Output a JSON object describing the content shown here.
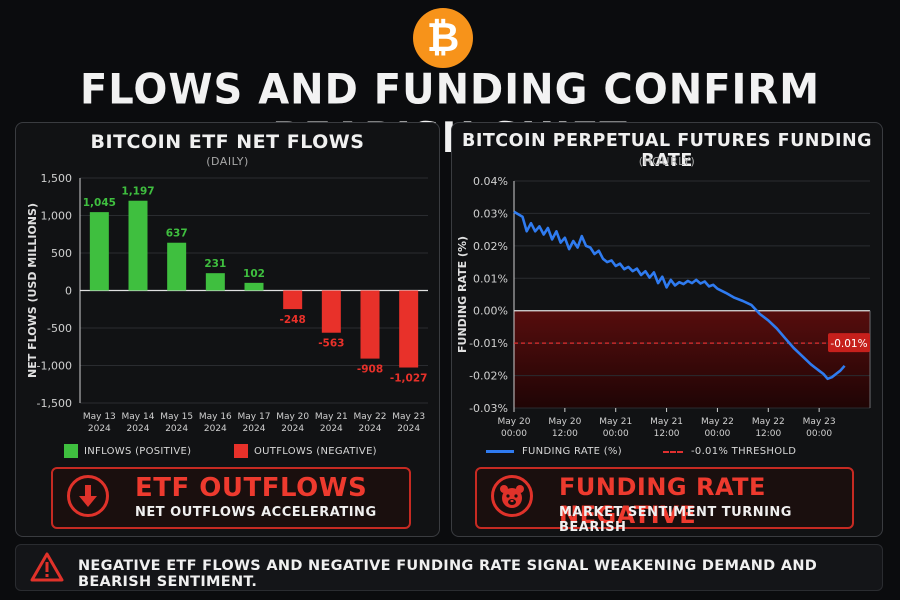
{
  "logo": {
    "symbol": "₿",
    "icon": "bitcoin-icon",
    "color": "#f7931a"
  },
  "title": "FLOWS AND FUNDING CONFIRM BEARISH SHIFT",
  "colors": {
    "positive": "#3fbf3f",
    "negative": "#e8312a",
    "line": "#2f7bf0",
    "threshold": "#e03030",
    "negative_zone": "#5a0d0d"
  },
  "chart_data": [
    {
      "type": "bar",
      "title": "BITCOIN ETF NET FLOWS",
      "subtitle": "(DAILY)",
      "ylabel": "NET FLOWS (USD MILLIONS)",
      "xlabel": "",
      "ylim": [
        -1500,
        1500
      ],
      "yticks": [
        -1500,
        -1000,
        -500,
        0,
        500,
        1000,
        1500
      ],
      "ytick_labels": [
        "-1,500",
        "-1,000",
        "-500",
        "0",
        "500",
        "1,000",
        "1,500"
      ],
      "categories": [
        [
          "May 13",
          "2024"
        ],
        [
          "May 14",
          "2024"
        ],
        [
          "May 15",
          "2024"
        ],
        [
          "May 16",
          "2024"
        ],
        [
          "May 17",
          "2024"
        ],
        [
          "May 20",
          "2024"
        ],
        [
          "May 21",
          "2024"
        ],
        [
          "May 22",
          "2024"
        ],
        [
          "May 23",
          "2024"
        ]
      ],
      "values": [
        1045,
        1197,
        637,
        231,
        102,
        -248,
        -563,
        -908,
        -1027
      ],
      "value_labels": [
        "1,045",
        "1,197",
        "637",
        "231",
        "102",
        "-248",
        "-563",
        "-908",
        "-1,027"
      ],
      "legend": [
        {
          "label": "INFLOWS (POSITIVE)",
          "color": "#3fbf3f"
        },
        {
          "label": "OUTFLOWS (NEGATIVE)",
          "color": "#e8312a"
        }
      ],
      "grid": true
    },
    {
      "type": "line",
      "title": "BITCOIN PERPETUAL FUTURES FUNDING RATE",
      "subtitle": "(HOURLY)",
      "ylabel": "FUNDING RATE (%)",
      "xlabel": "",
      "ylim": [
        -0.03,
        0.04
      ],
      "yticks": [
        -0.03,
        -0.02,
        -0.01,
        0,
        0.01,
        0.02,
        0.03,
        0.04
      ],
      "ytick_labels": [
        "-0.03%",
        "-0.02%",
        "-0.01%",
        "0.00%",
        "0.01%",
        "0.02%",
        "0.03%",
        "0.04%"
      ],
      "xlim": [
        0,
        84
      ],
      "xticks": [
        0,
        12,
        24,
        36,
        48,
        60,
        72
      ],
      "xtick_labels": [
        [
          "May 20",
          "00:00"
        ],
        [
          "May 20",
          "12:00"
        ],
        [
          "May 21",
          "00:00"
        ],
        [
          "May 21",
          "12:00"
        ],
        [
          "May 22",
          "00:00"
        ],
        [
          "May 22",
          "12:00"
        ],
        [
          "May 23",
          "00:00"
        ]
      ],
      "series": [
        {
          "name": "FUNDING RATE (%)",
          "x": [
            0,
            2,
            3,
            4,
            5,
            6,
            7,
            8,
            9,
            10,
            11,
            12,
            13,
            14,
            15,
            16,
            17,
            18,
            19,
            20,
            21,
            22,
            23,
            24,
            25,
            26,
            27,
            28,
            29,
            30,
            31,
            32,
            33,
            34,
            35,
            36,
            37,
            38,
            39,
            40,
            41,
            42,
            43,
            44,
            45,
            46,
            47,
            48,
            50,
            52,
            54,
            56,
            58,
            60,
            62,
            64,
            66,
            68,
            70,
            71,
            72,
            73,
            74,
            75,
            76,
            77,
            78
          ],
          "y": [
            0.0305,
            0.029,
            0.0245,
            0.027,
            0.0245,
            0.026,
            0.0235,
            0.0255,
            0.022,
            0.0245,
            0.021,
            0.0225,
            0.019,
            0.0215,
            0.0195,
            0.023,
            0.02,
            0.0195,
            0.0175,
            0.0185,
            0.016,
            0.015,
            0.0155,
            0.0138,
            0.0145,
            0.0128,
            0.0135,
            0.0122,
            0.013,
            0.011,
            0.0122,
            0.0102,
            0.0118,
            0.0085,
            0.0105,
            0.0072,
            0.0095,
            0.0078,
            0.0088,
            0.0082,
            0.0092,
            0.0085,
            0.0095,
            0.0084,
            0.009,
            0.0075,
            0.008,
            0.0068,
            0.0055,
            0.004,
            0.003,
            0.0018,
            -0.001,
            -0.003,
            -0.0055,
            -0.0085,
            -0.0115,
            -0.014,
            -0.0165,
            -0.0175,
            -0.0185,
            -0.0195,
            -0.021,
            -0.0205,
            -0.0195,
            -0.0185,
            -0.017
          ]
        }
      ],
      "threshold": {
        "value": -0.01,
        "label": "-0.01%",
        "legend": "-0.01% THRESHOLD"
      },
      "grid": true
    }
  ],
  "callouts": {
    "etf": {
      "headline": "ETF OUTFLOWS",
      "subtext": "NET OUTFLOWS ACCELERATING",
      "icon": "down-arrow-icon"
    },
    "funding": {
      "headline": "FUNDING RATE NEGATIVE",
      "subtext": "MARKET SENTIMENT TURNING BEARISH",
      "icon": "bear-icon"
    }
  },
  "footer": {
    "icon": "warning-icon",
    "text": "NEGATIVE ETF FLOWS AND NEGATIVE FUNDING RATE SIGNAL WEAKENING DEMAND AND BEARISH SENTIMENT."
  }
}
